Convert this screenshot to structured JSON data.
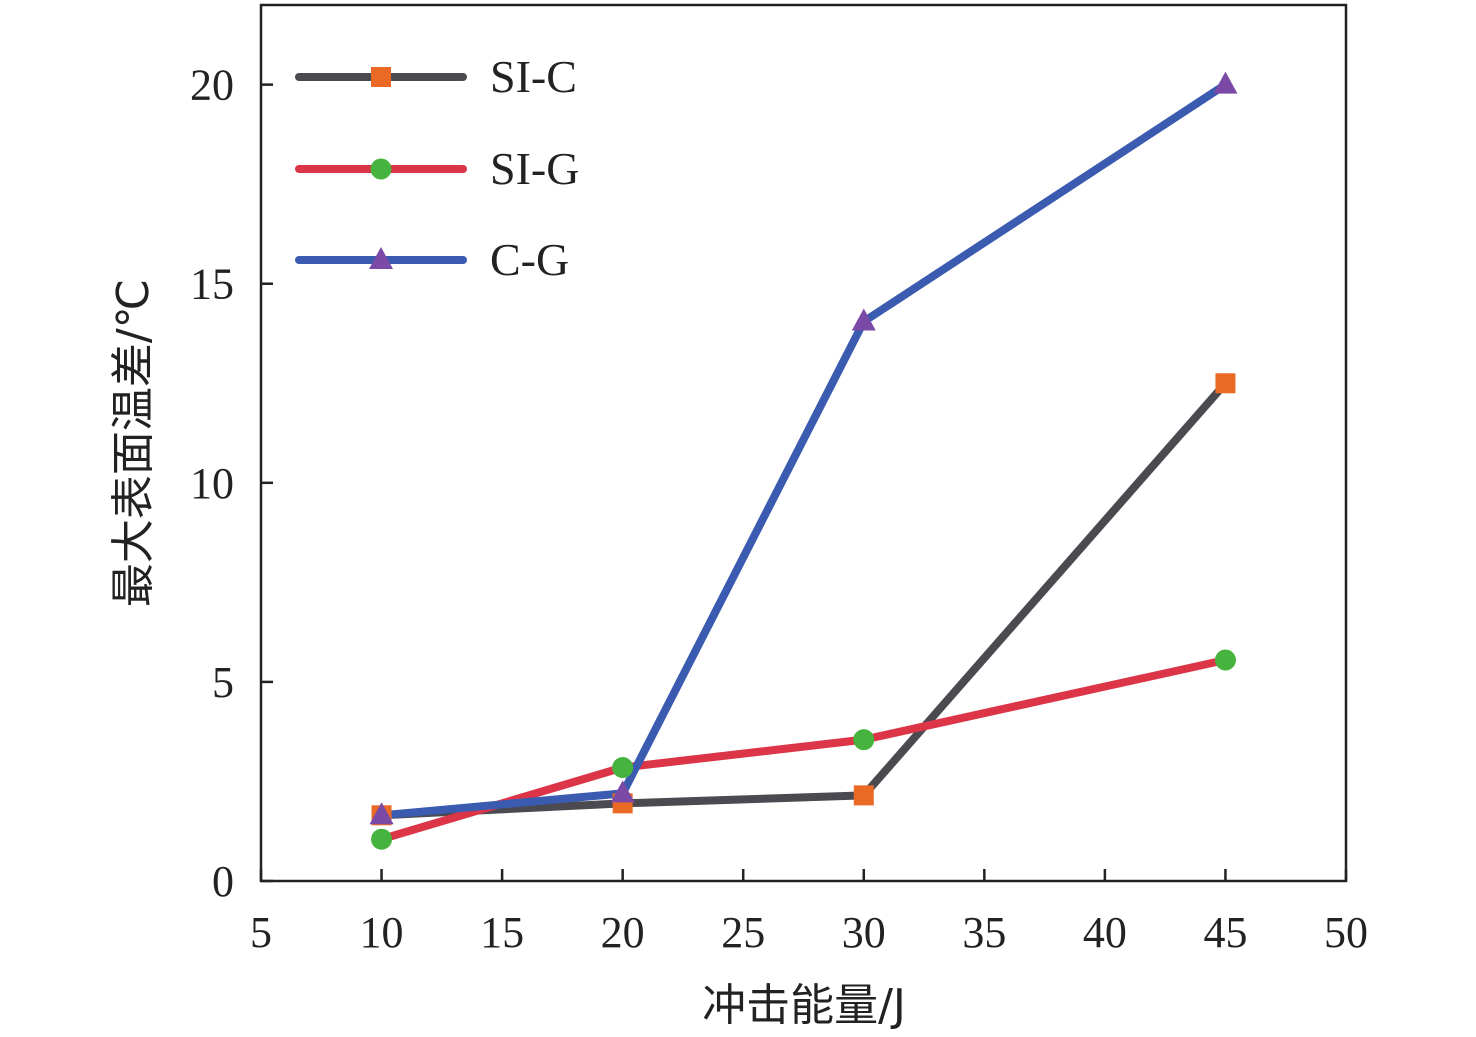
{
  "chart_data": {
    "type": "line",
    "xlabel": "冲击能量/J",
    "ylabel": "最大表面温差/℃",
    "xlim": [
      5,
      50
    ],
    "ylim": [
      0,
      22
    ],
    "xticks": [
      5,
      10,
      15,
      20,
      25,
      30,
      35,
      40,
      45,
      50
    ],
    "yticks": [
      0,
      5,
      10,
      15,
      20
    ],
    "x": [
      10,
      20,
      30,
      45
    ],
    "series": [
      {
        "name": "SI-C",
        "values": [
          1.65,
          1.95,
          2.15,
          12.5
        ],
        "line_color": "#4a4a50",
        "marker": "square",
        "marker_color": "#ea6a25"
      },
      {
        "name": "SI-G",
        "values": [
          1.05,
          2.85,
          3.55,
          5.55
        ],
        "line_color": "#dc3548",
        "marker": "circle",
        "marker_color": "#46b33f"
      },
      {
        "name": "C-G",
        "values": [
          1.65,
          2.2,
          14.05,
          20.0
        ],
        "line_color": "#3a5bb0",
        "marker": "triangle",
        "marker_color": "#7b4aa6"
      }
    ],
    "legend_position": "top-left",
    "grid": false
  }
}
